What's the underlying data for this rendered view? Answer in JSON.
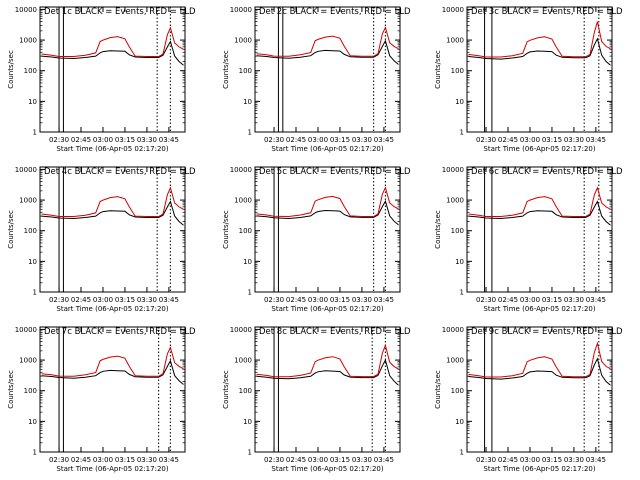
{
  "chart_data": [
    {
      "type": "line",
      "title": "Det 1c BLACK = Events, RED = LLD",
      "ylabel": "Counts/sec",
      "xlabel": "Start Time (06-Apr-05 02:17:20)",
      "yscale": "log",
      "ylim": [
        1,
        12000
      ],
      "xlim": [
        "02:17",
        "03:56"
      ],
      "x_ticks": [
        "02:30",
        "02:45",
        "03:00",
        "03:15",
        "03:30",
        "03:45"
      ],
      "y_ticks": [
        "1",
        "10",
        "100",
        "1000",
        "10000"
      ],
      "x": [
        "02:18",
        "02:25",
        "02:30",
        "02:40",
        "02:48",
        "02:55",
        "02:58",
        "03:00",
        "03:05",
        "03:10",
        "03:15",
        "03:18",
        "03:22",
        "03:30",
        "03:38",
        "03:41",
        "03:44",
        "03:46",
        "03:49",
        "03:52",
        "03:55"
      ],
      "series": [
        {
          "name": "Events",
          "color": "#000000",
          "values": [
            300,
            280,
            260,
            250,
            270,
            300,
            380,
            420,
            450,
            440,
            430,
            330,
            280,
            270,
            270,
            320,
            600,
            900,
            300,
            200,
            150
          ]
        },
        {
          "name": "LLD",
          "color": "#d40000",
          "values": [
            350,
            320,
            290,
            290,
            320,
            380,
            900,
            1000,
            1200,
            1300,
            1100,
            600,
            300,
            290,
            290,
            350,
            1500,
            2500,
            800,
            600,
            500
          ]
        }
      ],
      "markers": {
        "solid": [
          "02:30",
          "02:33"
        ],
        "dotted": [
          "03:37",
          "03:46"
        ]
      }
    },
    {
      "type": "line",
      "title": "Det 2c BLACK = Events, RED = LLD",
      "ylabel": "Counts/sec",
      "xlabel": "Start Time (06-Apr-05 02:17:20)",
      "yscale": "log",
      "ylim": [
        1,
        12000
      ],
      "xlim": [
        "02:17",
        "03:56"
      ],
      "x_ticks": [
        "02:30",
        "02:45",
        "03:00",
        "03:15",
        "03:30",
        "03:45"
      ],
      "y_ticks": [
        "1",
        "10",
        "100",
        "1000",
        "10000"
      ],
      "x": [
        "02:18",
        "02:25",
        "02:30",
        "02:40",
        "02:48",
        "02:55",
        "02:58",
        "03:00",
        "03:05",
        "03:10",
        "03:15",
        "03:18",
        "03:22",
        "03:30",
        "03:38",
        "03:41",
        "03:44",
        "03:46",
        "03:49",
        "03:52",
        "03:55"
      ],
      "series": [
        {
          "name": "Events",
          "color": "#000000",
          "values": [
            310,
            290,
            270,
            255,
            275,
            310,
            390,
            430,
            460,
            450,
            440,
            340,
            285,
            275,
            275,
            330,
            620,
            950,
            310,
            210,
            160
          ]
        },
        {
          "name": "LLD",
          "color": "#d40000",
          "values": [
            360,
            330,
            300,
            295,
            330,
            390,
            950,
            1050,
            1250,
            1350,
            1150,
            620,
            310,
            295,
            295,
            360,
            1600,
            2600,
            820,
            620,
            520
          ]
        }
      ],
      "markers": {
        "solid": [
          "02:33",
          "02:36"
        ],
        "dotted": [
          "03:38",
          "03:46"
        ]
      }
    },
    {
      "type": "line",
      "title": "Det 3c BLACK = Events, RED = LLD",
      "ylabel": "Counts/sec",
      "xlabel": "Start Time (06-Apr-05 02:17:20)",
      "yscale": "log",
      "ylim": [
        1,
        12000
      ],
      "xlim": [
        "02:17",
        "03:56"
      ],
      "x_ticks": [
        "02:30",
        "02:45",
        "03:00",
        "03:15",
        "03:30",
        "03:45"
      ],
      "y_ticks": [
        "1",
        "10",
        "100",
        "1000",
        "10000"
      ],
      "x": [
        "02:18",
        "02:25",
        "02:30",
        "02:40",
        "02:48",
        "02:55",
        "02:58",
        "03:00",
        "03:05",
        "03:10",
        "03:15",
        "03:18",
        "03:22",
        "03:30",
        "03:38",
        "03:41",
        "03:44",
        "03:46",
        "03:49",
        "03:52",
        "03:55"
      ],
      "series": [
        {
          "name": "Events",
          "color": "#000000",
          "values": [
            290,
            270,
            250,
            240,
            260,
            290,
            370,
            410,
            440,
            430,
            420,
            320,
            275,
            265,
            265,
            310,
            700,
            1100,
            320,
            200,
            150
          ]
        },
        {
          "name": "LLD",
          "color": "#d40000",
          "values": [
            340,
            310,
            280,
            280,
            310,
            370,
            880,
            980,
            1180,
            1280,
            1080,
            590,
            295,
            285,
            285,
            340,
            1800,
            4000,
            900,
            620,
            520
          ]
        }
      ],
      "markers": {
        "solid": [
          "02:29",
          "02:34"
        ],
        "dotted": [
          "03:37",
          "03:47"
        ]
      }
    },
    {
      "type": "line",
      "title": "Det 4c BLACK = Events, RED = LLD",
      "ylabel": "Counts/sec",
      "xlabel": "Start Time (06-Apr-05 02:17:20)",
      "yscale": "log",
      "ylim": [
        1,
        12000
      ],
      "xlim": [
        "02:17",
        "03:56"
      ],
      "x_ticks": [
        "02:30",
        "02:45",
        "03:00",
        "03:15",
        "03:30",
        "03:45"
      ],
      "y_ticks": [
        "1",
        "10",
        "100",
        "1000",
        "10000"
      ],
      "x": [
        "02:18",
        "02:25",
        "02:30",
        "02:40",
        "02:48",
        "02:55",
        "02:58",
        "03:00",
        "03:05",
        "03:10",
        "03:15",
        "03:18",
        "03:22",
        "03:30",
        "03:38",
        "03:41",
        "03:44",
        "03:46",
        "03:49",
        "03:52",
        "03:55"
      ],
      "series": [
        {
          "name": "Events",
          "color": "#000000",
          "values": [
            300,
            280,
            260,
            250,
            270,
            300,
            380,
            420,
            450,
            440,
            430,
            330,
            280,
            270,
            270,
            320,
            600,
            900,
            300,
            200,
            150
          ]
        },
        {
          "name": "LLD",
          "color": "#d40000",
          "values": [
            350,
            320,
            290,
            290,
            320,
            380,
            900,
            1000,
            1200,
            1300,
            1100,
            600,
            300,
            290,
            290,
            350,
            1500,
            2500,
            800,
            600,
            500
          ]
        }
      ],
      "markers": {
        "solid": [
          "02:30",
          "02:33"
        ],
        "dotted": [
          "03:37",
          "03:46"
        ]
      }
    },
    {
      "type": "line",
      "title": "Det 5c BLACK = Events, RED = LLD",
      "ylabel": "Counts/sec",
      "xlabel": "Start Time (06-Apr-05 02:17:20)",
      "yscale": "log",
      "ylim": [
        1,
        12000
      ],
      "xlim": [
        "02:17",
        "03:56"
      ],
      "x_ticks": [
        "02:30",
        "02:45",
        "03:00",
        "03:15",
        "03:30",
        "03:45"
      ],
      "y_ticks": [
        "1",
        "10",
        "100",
        "1000",
        "10000"
      ],
      "x": [
        "02:18",
        "02:25",
        "02:30",
        "02:40",
        "02:48",
        "02:55",
        "02:58",
        "03:00",
        "03:05",
        "03:10",
        "03:15",
        "03:18",
        "03:22",
        "03:30",
        "03:38",
        "03:41",
        "03:44",
        "03:46",
        "03:49",
        "03:52",
        "03:55"
      ],
      "series": [
        {
          "name": "Events",
          "color": "#000000",
          "values": [
            305,
            285,
            265,
            250,
            270,
            305,
            385,
            425,
            455,
            445,
            435,
            335,
            282,
            272,
            272,
            325,
            610,
            920,
            305,
            205,
            155
          ]
        },
        {
          "name": "LLD",
          "color": "#d40000",
          "values": [
            355,
            325,
            295,
            290,
            325,
            385,
            920,
            1020,
            1220,
            1320,
            1120,
            610,
            305,
            292,
            292,
            355,
            1550,
            2550,
            810,
            610,
            510
          ]
        }
      ],
      "markers": {
        "solid": [
          "02:30",
          "02:33"
        ],
        "dotted": [
          "03:38",
          "03:46"
        ]
      }
    },
    {
      "type": "line",
      "title": "Det 6c BLACK = Events, RED = LLD",
      "ylabel": "Counts/sec",
      "xlabel": "Start Time (06-Apr-05 02:17:20)",
      "yscale": "log",
      "ylim": [
        1,
        12000
      ],
      "xlim": [
        "02:17",
        "03:56"
      ],
      "x_ticks": [
        "02:30",
        "02:45",
        "03:00",
        "03:15",
        "03:30",
        "03:45"
      ],
      "y_ticks": [
        "1",
        "10",
        "100",
        "1000",
        "10000"
      ],
      "x": [
        "02:18",
        "02:25",
        "02:30",
        "02:40",
        "02:48",
        "02:55",
        "02:58",
        "03:00",
        "03:05",
        "03:10",
        "03:15",
        "03:18",
        "03:22",
        "03:30",
        "03:38",
        "03:41",
        "03:44",
        "03:46",
        "03:49",
        "03:52",
        "03:55"
      ],
      "series": [
        {
          "name": "Events",
          "color": "#000000",
          "values": [
            300,
            280,
            260,
            250,
            270,
            300,
            380,
            420,
            450,
            440,
            430,
            330,
            280,
            270,
            270,
            320,
            600,
            900,
            300,
            200,
            150
          ]
        },
        {
          "name": "LLD",
          "color": "#d40000",
          "values": [
            350,
            320,
            290,
            290,
            320,
            380,
            900,
            1000,
            1200,
            1300,
            1100,
            600,
            300,
            290,
            290,
            350,
            1500,
            2500,
            800,
            600,
            500
          ]
        }
      ],
      "markers": {
        "solid": [
          "02:29",
          "02:34"
        ],
        "dotted": [
          "03:37",
          "03:47"
        ]
      }
    },
    {
      "type": "line",
      "title": "Det 7c BLACK = Events, RED = LLD",
      "ylabel": "Counts/sec",
      "xlabel": "Start Time (06-Apr-05 02:17:20)",
      "yscale": "log",
      "ylim": [
        1,
        12000
      ],
      "xlim": [
        "02:17",
        "03:56"
      ],
      "x_ticks": [
        "02:30",
        "02:45",
        "03:00",
        "03:15",
        "03:30",
        "03:45"
      ],
      "y_ticks": [
        "1",
        "10",
        "100",
        "1000",
        "10000"
      ],
      "x": [
        "02:18",
        "02:25",
        "02:30",
        "02:40",
        "02:48",
        "02:55",
        "02:58",
        "03:00",
        "03:05",
        "03:10",
        "03:15",
        "03:18",
        "03:22",
        "03:30",
        "03:38",
        "03:41",
        "03:44",
        "03:46",
        "03:49",
        "03:52",
        "03:55"
      ],
      "series": [
        {
          "name": "Events",
          "color": "#000000",
          "values": [
            310,
            290,
            270,
            255,
            275,
            310,
            390,
            430,
            460,
            450,
            440,
            340,
            285,
            275,
            275,
            330,
            620,
            950,
            310,
            210,
            160
          ]
        },
        {
          "name": "LLD",
          "color": "#d40000",
          "values": [
            360,
            330,
            300,
            295,
            330,
            390,
            950,
            1050,
            1250,
            1350,
            1150,
            620,
            310,
            295,
            295,
            360,
            1600,
            2600,
            820,
            620,
            520
          ]
        }
      ],
      "markers": {
        "solid": [
          "02:30",
          "02:33"
        ],
        "dotted": [
          "03:38",
          "03:46"
        ]
      }
    },
    {
      "type": "line",
      "title": "Det 8c BLACK = Events, RED = LLD",
      "ylabel": "Counts/sec",
      "xlabel": "Start Time (06-Apr-05 02:17:20)",
      "yscale": "log",
      "ylim": [
        1,
        12000
      ],
      "xlim": [
        "02:17",
        "03:56"
      ],
      "x_ticks": [
        "02:30",
        "02:45",
        "03:00",
        "03:15",
        "03:30",
        "03:45"
      ],
      "y_ticks": [
        "1",
        "10",
        "100",
        "1000",
        "10000"
      ],
      "x": [
        "02:18",
        "02:25",
        "02:30",
        "02:40",
        "02:48",
        "02:55",
        "02:58",
        "03:00",
        "03:05",
        "03:10",
        "03:15",
        "03:18",
        "03:22",
        "03:30",
        "03:38",
        "03:41",
        "03:44",
        "03:46",
        "03:49",
        "03:52",
        "03:55"
      ],
      "series": [
        {
          "name": "Events",
          "color": "#000000",
          "values": [
            295,
            275,
            255,
            245,
            265,
            295,
            375,
            415,
            445,
            435,
            425,
            325,
            278,
            268,
            268,
            315,
            650,
            1000,
            310,
            205,
            150
          ]
        },
        {
          "name": "LLD",
          "color": "#d40000",
          "values": [
            345,
            315,
            285,
            285,
            315,
            375,
            880,
            990,
            1190,
            1290,
            1090,
            595,
            298,
            288,
            288,
            345,
            1700,
            3000,
            850,
            610,
            510
          ]
        }
      ],
      "markers": {
        "solid": [
          "02:30",
          "02:33"
        ],
        "dotted": [
          "03:37",
          "03:46"
        ]
      }
    },
    {
      "type": "line",
      "title": "Det 9c BLACK = Events, RED = LLD",
      "ylabel": "Counts/sec",
      "xlabel": "Start Time (06-Apr-05 02:17:20)",
      "yscale": "log",
      "ylim": [
        1,
        12000
      ],
      "xlim": [
        "02:17",
        "03:56"
      ],
      "x_ticks": [
        "02:30",
        "02:45",
        "03:00",
        "03:15",
        "03:30",
        "03:45"
      ],
      "y_ticks": [
        "1",
        "10",
        "100",
        "1000",
        "10000"
      ],
      "x": [
        "02:18",
        "02:25",
        "02:30",
        "02:40",
        "02:48",
        "02:55",
        "02:58",
        "03:00",
        "03:05",
        "03:10",
        "03:15",
        "03:18",
        "03:22",
        "03:30",
        "03:38",
        "03:41",
        "03:44",
        "03:46",
        "03:49",
        "03:52",
        "03:55"
      ],
      "series": [
        {
          "name": "Events",
          "color": "#000000",
          "values": [
            290,
            270,
            250,
            240,
            260,
            290,
            370,
            410,
            440,
            430,
            420,
            320,
            275,
            265,
            265,
            310,
            700,
            1100,
            320,
            200,
            150
          ]
        },
        {
          "name": "LLD",
          "color": "#d40000",
          "values": [
            340,
            310,
            280,
            280,
            310,
            370,
            880,
            980,
            1180,
            1280,
            1080,
            590,
            295,
            285,
            285,
            340,
            1800,
            3500,
            900,
            620,
            520
          ]
        }
      ],
      "markers": {
        "solid": [
          "02:29",
          "02:34"
        ],
        "dotted": [
          "03:37",
          "03:47"
        ]
      }
    }
  ]
}
